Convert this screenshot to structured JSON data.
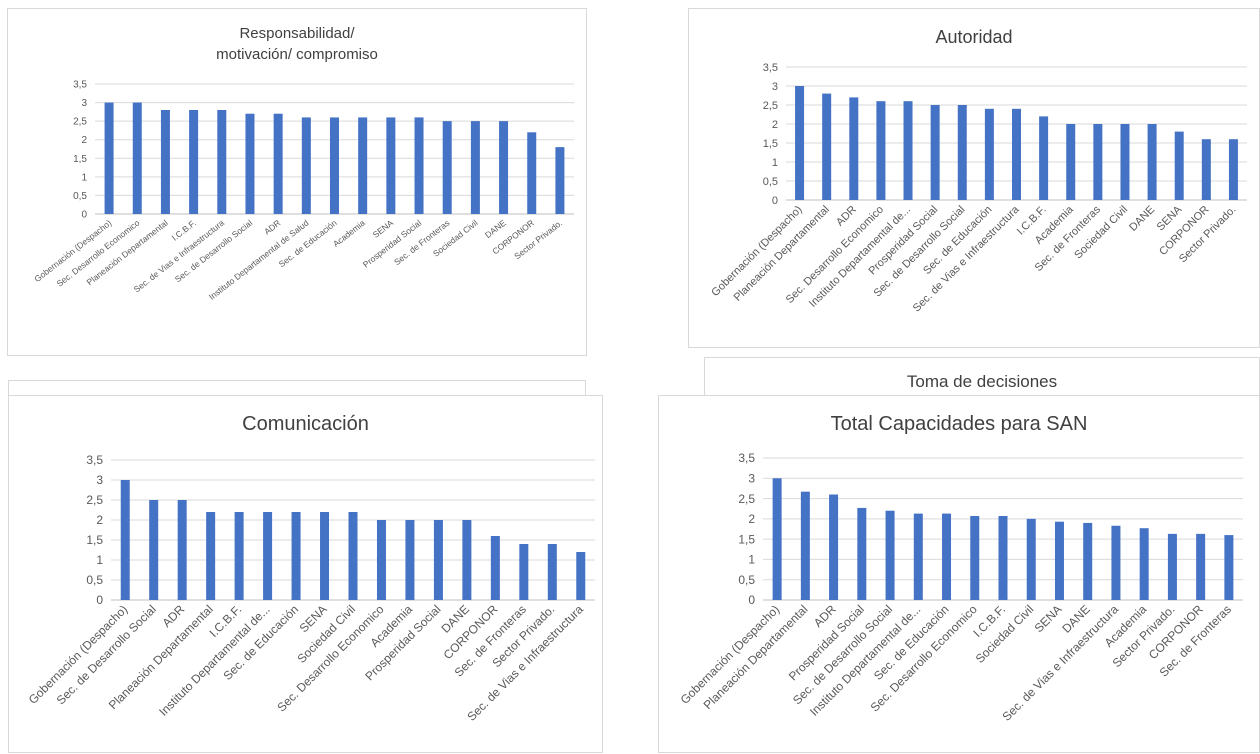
{
  "chart_data": [
    {
      "type": "bar",
      "title": "Responsabilidad/\nmotivación/ compromiso",
      "categories": [
        "Gobernación (Despacho)",
        "Sec. Desarrollo Economico",
        "Planeación Departamental",
        "I.C.B.F.",
        "Sec. de Vias e Infraestructura",
        "Sec. de Desarrollo Social",
        "ADR",
        "Instituto Departamental de Salud",
        "Sec. de Educación",
        "Academia",
        "SENA",
        "Prosperidad Social",
        "Sec. de Fronteras",
        "Sociedad Civil",
        "DANE",
        "CORPONOR",
        "Sector Privado."
      ],
      "values": [
        3,
        3,
        2.8,
        2.8,
        2.8,
        2.7,
        2.7,
        2.6,
        2.6,
        2.6,
        2.6,
        2.6,
        2.5,
        2.5,
        2.5,
        2.2,
        1.8
      ],
      "yticks": [
        "0",
        "0,5",
        "1",
        "1,5",
        "2",
        "2,5",
        "3",
        "3,5"
      ],
      "ylim": [
        0,
        3.5
      ],
      "grid": true,
      "bar_color": "#4472C4"
    },
    {
      "type": "bar",
      "title": "Autoridad",
      "categories": [
        "Gobernación (Despacho)",
        "Planeación Departamental",
        "ADR",
        "Sec. Desarrollo Economico",
        "Instituto Departamental de...",
        "Prosperidad Social",
        "Sec. de Desarrollo Social",
        "Sec. de Educación",
        "Sec. de Vias e Infraestructura",
        "I.C.B.F.",
        "Academia",
        "Sec. de Fronteras",
        "Sociedad Civil",
        "DANE",
        "SENA",
        "CORPONOR",
        "Sector Privado."
      ],
      "values": [
        3,
        2.8,
        2.7,
        2.6,
        2.6,
        2.5,
        2.5,
        2.4,
        2.4,
        2.2,
        2,
        2,
        2,
        2,
        1.8,
        1.6,
        1.6
      ],
      "yticks": [
        "0",
        "0,5",
        "1",
        "1,5",
        "2",
        "2,5",
        "3",
        "3,5"
      ],
      "ylim": [
        0,
        3.5
      ],
      "grid": true,
      "bar_color": "#4472C4"
    },
    {
      "type": "bar",
      "title": "Comunicación",
      "categories": [
        "Gobernación (Despacho)",
        "Sec. de Desarrollo Social",
        "ADR",
        "Planeación Departamental",
        "I.C.B.F.",
        "Instituto Departamental de...",
        "Sec. de Educación",
        "SENA",
        "Sociedad Civil",
        "Sec. Desarrollo Economico",
        "Academia",
        "Prosperidad Social",
        "DANE",
        "CORPONOR",
        "Sec. de Fronteras",
        "Sector Privado.",
        "Sec. de Vias e Infraestructura"
      ],
      "values": [
        3,
        2.5,
        2.5,
        2.2,
        2.2,
        2.2,
        2.2,
        2.2,
        2.2,
        2,
        2,
        2,
        2,
        1.6,
        1.4,
        1.4,
        1.2
      ],
      "yticks": [
        "0",
        "0,5",
        "1",
        "1,5",
        "2",
        "2,5",
        "3",
        "3,5"
      ],
      "ylim": [
        0,
        3.5
      ],
      "grid": true,
      "bar_color": "#4472C4"
    },
    {
      "type": "bar",
      "title": "Total Capacidades para SAN",
      "categories": [
        "Gobernación (Despacho)",
        "Planeación Departamental",
        "ADR",
        "Prosperidad Social",
        "Sec. de Desarrollo Social",
        "Instituto Departamental de...",
        "Sec. de Educación",
        "Sec. Desarrollo Economico",
        "I.C.B.F.",
        "Sociedad Civil",
        "SENA",
        "DANE",
        "Sec. de Vias e Infraestructura",
        "Academia",
        "Sector Privado.",
        "CORPONOR",
        "Sec. de Fronteras"
      ],
      "values": [
        3,
        2.67,
        2.6,
        2.27,
        2.2,
        2.13,
        2.13,
        2.07,
        2.07,
        2,
        1.93,
        1.9,
        1.83,
        1.77,
        1.63,
        1.63,
        1.6
      ],
      "yticks": [
        "0",
        "0,5",
        "1",
        "1,5",
        "2",
        "2,5",
        "3",
        "3,5"
      ],
      "ylim": [
        0,
        3.5
      ],
      "grid": true,
      "bar_color": "#4472C4"
    }
  ],
  "hidden_panel": {
    "title": "Toma de decisiones"
  }
}
